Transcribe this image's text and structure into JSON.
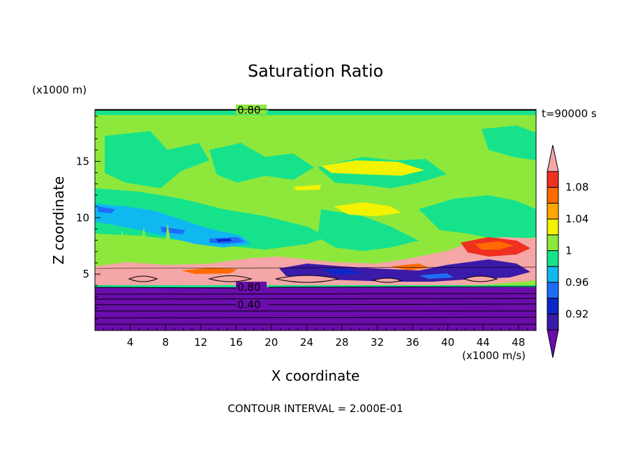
{
  "chart_data": {
    "type": "heatmap",
    "title": "Saturation Ratio",
    "xlabel": "X coordinate",
    "ylabel": "Z coordinate",
    "x_unit": "(x1000 m/s)",
    "z_unit": "(x1000 m)",
    "time_label": "t=90000 s",
    "footer": "CONTOUR INTERVAL = 2.000E-01",
    "xlim": [
      0,
      50
    ],
    "ylim": [
      0,
      19.6
    ],
    "x_ticks": [
      "4",
      "8",
      "12",
      "16",
      "20",
      "24",
      "28",
      "32",
      "36",
      "40",
      "44",
      "48"
    ],
    "y_ticks": [
      "5",
      "10",
      "15"
    ],
    "colorbar_labels": [
      "1.08",
      "1.04",
      "1",
      "0.96",
      "0.92"
    ],
    "colorbar_levels": [
      0.9,
      0.92,
      0.94,
      0.96,
      0.98,
      1.0,
      1.02,
      1.04,
      1.06,
      1.08,
      1.1
    ],
    "colors": [
      "#6a0dab",
      "#3a1aa8",
      "#0a28c8",
      "#1e6ef5",
      "#10b8f0",
      "#16e28c",
      "#8ee83c",
      "#f3f300",
      "#ffa800",
      "#ff6a00",
      "#f03020",
      "#f5a6a6"
    ],
    "contour_labels": [
      "0.80",
      "0.80",
      "0.40"
    ]
  }
}
